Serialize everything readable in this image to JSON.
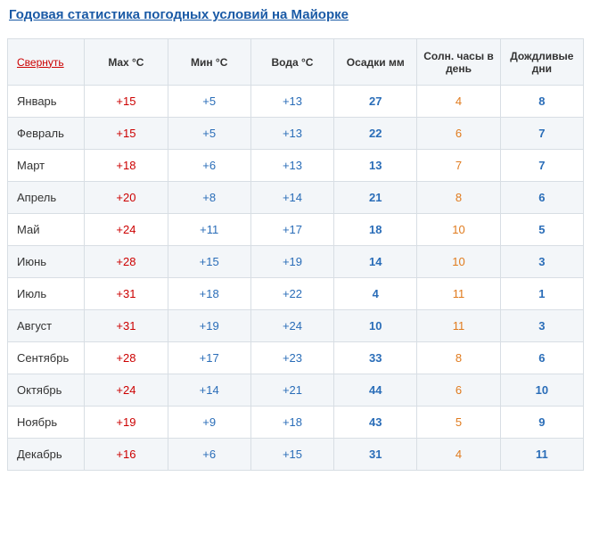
{
  "title": "Годовая статистика погодных условий на Майорке",
  "collapse_label": "Свернуть",
  "headers": {
    "max": "Max °C",
    "min": "Мин °C",
    "water": "Вода °C",
    "precip": "Осадки мм",
    "sun": "Солн. часы в день",
    "rain": "Дождливые дни"
  },
  "colors": {
    "title": "#1a5aa6",
    "collapse_link": "#cc0000",
    "border": "#d8dee4",
    "row_alt_bg": "#f3f6f9",
    "max": "#cc0000",
    "min": "#2a6db8",
    "water": "#2a6db8",
    "precip": "#2a6db8",
    "sun": "#e07b1e",
    "rain": "#2a6db8"
  },
  "rows": [
    {
      "month": "Январь",
      "max": "+15",
      "min": "+5",
      "water": "+13",
      "precip": "27",
      "sun": "4",
      "rain": "8"
    },
    {
      "month": "Февраль",
      "max": "+15",
      "min": "+5",
      "water": "+13",
      "precip": "22",
      "sun": "6",
      "rain": "7"
    },
    {
      "month": "Март",
      "max": "+18",
      "min": "+6",
      "water": "+13",
      "precip": "13",
      "sun": "7",
      "rain": "7"
    },
    {
      "month": "Апрель",
      "max": "+20",
      "min": "+8",
      "water": "+14",
      "precip": "21",
      "sun": "8",
      "rain": "6"
    },
    {
      "month": "Май",
      "max": "+24",
      "min": "+11",
      "water": "+17",
      "precip": "18",
      "sun": "10",
      "rain": "5"
    },
    {
      "month": "Июнь",
      "max": "+28",
      "min": "+15",
      "water": "+19",
      "precip": "14",
      "sun": "10",
      "rain": "3"
    },
    {
      "month": "Июль",
      "max": "+31",
      "min": "+18",
      "water": "+22",
      "precip": "4",
      "sun": "11",
      "rain": "1"
    },
    {
      "month": "Август",
      "max": "+31",
      "min": "+19",
      "water": "+24",
      "precip": "10",
      "sun": "11",
      "rain": "3"
    },
    {
      "month": "Сентябрь",
      "max": "+28",
      "min": "+17",
      "water": "+23",
      "precip": "33",
      "sun": "8",
      "rain": "6"
    },
    {
      "month": "Октябрь",
      "max": "+24",
      "min": "+14",
      "water": "+21",
      "precip": "44",
      "sun": "6",
      "rain": "10"
    },
    {
      "month": "Ноябрь",
      "max": "+19",
      "min": "+9",
      "water": "+18",
      "precip": "43",
      "sun": "5",
      "rain": "9"
    },
    {
      "month": "Декабрь",
      "max": "+16",
      "min": "+6",
      "water": "+15",
      "precip": "31",
      "sun": "4",
      "rain": "11"
    }
  ]
}
